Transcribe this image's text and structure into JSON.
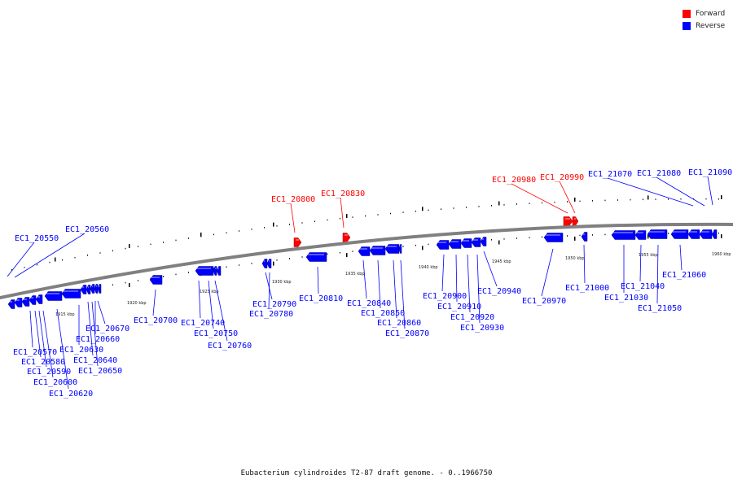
{
  "caption": "Eubacterium cylindroides T2-87 draft genome. - 0..1966750",
  "legend": [
    {
      "label": "Forward",
      "color": "#ff0000"
    },
    {
      "label": "Reverse",
      "color": "#0000ff"
    }
  ],
  "colors": {
    "forward": "#ff0000",
    "reverse": "#0000ff",
    "backbone": "#808080"
  },
  "tick_labels": [
    "1915 kbp",
    "1920 kbp",
    "1925 kbp",
    "1930 kbp",
    "1935 kbp",
    "1940 kbp",
    "1945 kbp",
    "1950 kbp",
    "1955 kbp",
    "1960 kbp"
  ],
  "genes": [
    {
      "name": "EC1_20550",
      "strand": "reverse"
    },
    {
      "name": "EC1_20560",
      "strand": "reverse"
    },
    {
      "name": "EC1_20570",
      "strand": "reverse"
    },
    {
      "name": "EC1_20580",
      "strand": "reverse"
    },
    {
      "name": "EC1_20590",
      "strand": "reverse"
    },
    {
      "name": "EC1_20600",
      "strand": "reverse"
    },
    {
      "name": "EC1_20620",
      "strand": "reverse"
    },
    {
      "name": "EC1_20630",
      "strand": "reverse"
    },
    {
      "name": "EC1_20640",
      "strand": "reverse"
    },
    {
      "name": "EC1_20650",
      "strand": "reverse"
    },
    {
      "name": "EC1_20660",
      "strand": "reverse"
    },
    {
      "name": "EC1_20670",
      "strand": "reverse"
    },
    {
      "name": "EC1_20700",
      "strand": "reverse"
    },
    {
      "name": "EC1_20740",
      "strand": "reverse"
    },
    {
      "name": "EC1_20750",
      "strand": "reverse"
    },
    {
      "name": "EC1_20760",
      "strand": "reverse"
    },
    {
      "name": "EC1_20790",
      "strand": "reverse"
    },
    {
      "name": "EC1_20780",
      "strand": "reverse"
    },
    {
      "name": "EC1_20800",
      "strand": "forward"
    },
    {
      "name": "EC1_20810",
      "strand": "reverse"
    },
    {
      "name": "EC1_20830",
      "strand": "forward"
    },
    {
      "name": "EC1_20840",
      "strand": "reverse"
    },
    {
      "name": "EC1_20850",
      "strand": "reverse"
    },
    {
      "name": "EC1_20860",
      "strand": "reverse"
    },
    {
      "name": "EC1_20870",
      "strand": "reverse"
    },
    {
      "name": "EC1_20900",
      "strand": "reverse"
    },
    {
      "name": "EC1_20910",
      "strand": "reverse"
    },
    {
      "name": "EC1_20920",
      "strand": "reverse"
    },
    {
      "name": "EC1_20930",
      "strand": "reverse"
    },
    {
      "name": "EC1_20940",
      "strand": "reverse"
    },
    {
      "name": "EC1_20970",
      "strand": "reverse"
    },
    {
      "name": "EC1_20980",
      "strand": "forward"
    },
    {
      "name": "EC1_20990",
      "strand": "forward"
    },
    {
      "name": "EC1_21000",
      "strand": "reverse"
    },
    {
      "name": "EC1_21030",
      "strand": "reverse"
    },
    {
      "name": "EC1_21040",
      "strand": "reverse"
    },
    {
      "name": "EC1_21050",
      "strand": "reverse"
    },
    {
      "name": "EC1_21060",
      "strand": "reverse"
    },
    {
      "name": "EC1_21070",
      "strand": "reverse"
    },
    {
      "name": "EC1_21080",
      "strand": "reverse"
    },
    {
      "name": "EC1_21090",
      "strand": "reverse"
    }
  ]
}
